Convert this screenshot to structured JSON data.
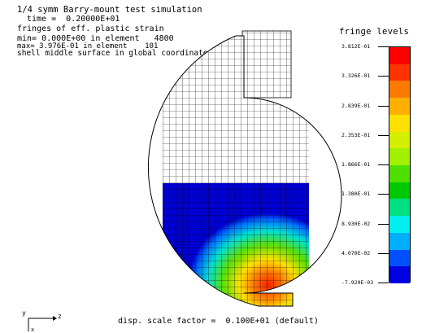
{
  "header": {
    "title": "1/4 symm Barry-mount test simulation",
    "time": "time =  0.20000E+01",
    "fringe_desc": "fringes of eff. plastic strain",
    "min_line": "min= 0.000E+00 in element   4800",
    "max_line": "max= 3.976E-01 in element    101",
    "surface": "shell middle surface in global coordinates"
  },
  "legend": {
    "title": "fringe levels",
    "levels": [
      "3.812E-01",
      "3.326E-01",
      "2.839E-01",
      "2.353E-01",
      "1.866E-01",
      "1.380E-01",
      "8.930E-02",
      "4.070E-02",
      "-7.920E-03"
    ],
    "colors": [
      "#ff0000",
      "#ff3300",
      "#ff7a00",
      "#ffb000",
      "#ffe000",
      "#d4f000",
      "#a0f000",
      "#50e000",
      "#00c800",
      "#00e080",
      "#00f0f0",
      "#00b0ff",
      "#0050ff",
      "#0000e0"
    ]
  },
  "axes": {
    "y": "y",
    "z": "z",
    "x": "x"
  },
  "footer": "disp. scale factor =  0.100E+01 (default)"
}
